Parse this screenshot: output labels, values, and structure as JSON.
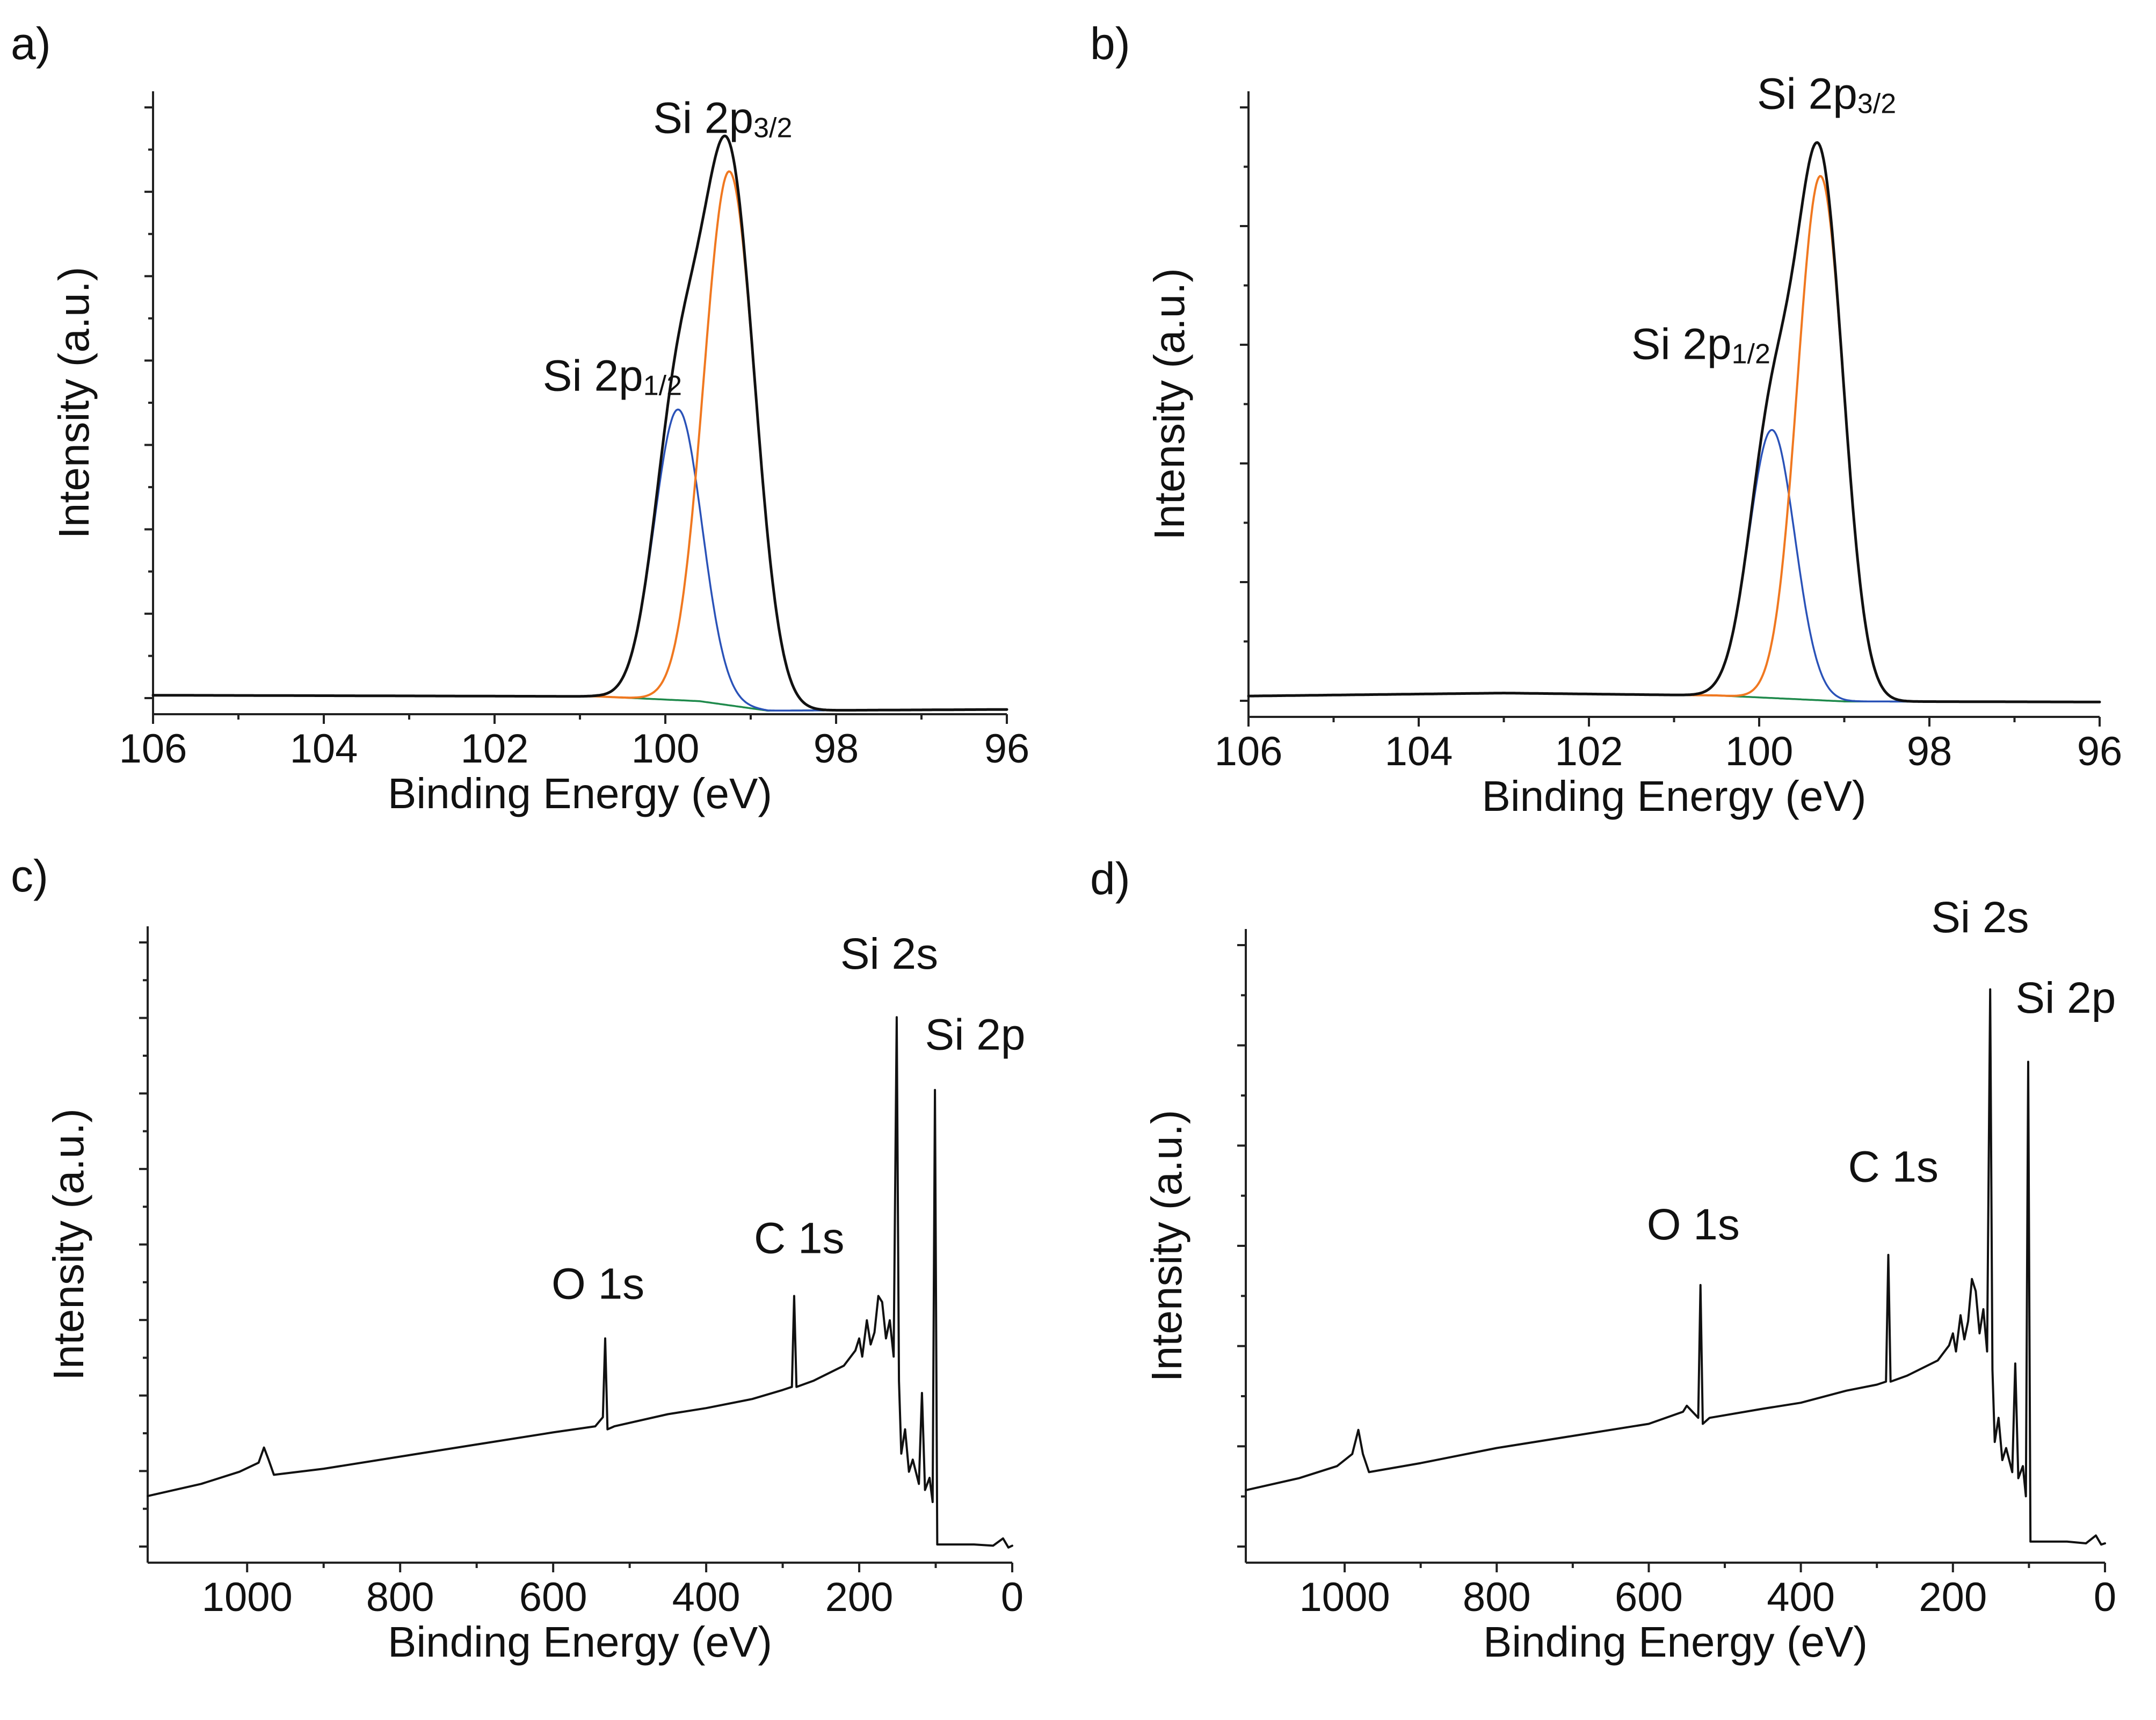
{
  "chart_data": [
    {
      "type": "line",
      "panel": "a)",
      "xlabel": "Binding Energy (eV)",
      "ylabel": "Intensity (a.u.)",
      "xlim": [
        106,
        96
      ],
      "ylim": [
        0,
        105
      ],
      "x_ticks": [
        106,
        104,
        102,
        100,
        98,
        96
      ],
      "y_tick_count": 8,
      "peaks": [
        {
          "label": "Si 2p",
          "sub": "1/2",
          "x": 99.8,
          "y": 50
        },
        {
          "label": "Si 2p",
          "sub": "3/2",
          "x": 99.2,
          "y": 93
        }
      ],
      "series": [
        {
          "name": "Envelope",
          "color": "#111111",
          "width": 5,
          "kind": "envelope"
        },
        {
          "name": "Si 2p1/2 component",
          "color": "#2a52b8",
          "width": 3.5,
          "kind": "gauss",
          "center": 99.85,
          "height": 49,
          "sigma": 0.28
        },
        {
          "name": "Si 2p3/2 component",
          "color": "#f07820",
          "width": 4,
          "kind": "gauss",
          "center": 99.25,
          "height": 90,
          "sigma": 0.3
        },
        {
          "name": "Background",
          "color": "#1f8a4c",
          "width": 3.5,
          "kind": "background",
          "points": [
            [
              106,
              3.2
            ],
            [
              100.8,
              3.0
            ],
            [
              99.6,
              2.2
            ],
            [
              98.8,
              0.6
            ],
            [
              96,
              0.8
            ]
          ]
        }
      ]
    },
    {
      "type": "line",
      "panel": "b)",
      "xlabel": "Binding Energy (eV)",
      "ylabel": "Intensity (a.u.)",
      "xlim": [
        106,
        96
      ],
      "ylim": [
        0,
        105
      ],
      "x_ticks": [
        106,
        104,
        102,
        100,
        98,
        96
      ],
      "y_tick_count": 6,
      "peaks": [
        {
          "label": "Si 2p",
          "sub": "1/2",
          "x": 99.8,
          "y": 56
        },
        {
          "label": "Si 2p",
          "sub": "3/2",
          "x": 99.3,
          "y": 98
        }
      ],
      "series": [
        {
          "name": "Envelope",
          "color": "#111111",
          "width": 5,
          "kind": "envelope"
        },
        {
          "name": "Si 2p1/2 component",
          "color": "#2a52b8",
          "width": 3.5,
          "kind": "gauss",
          "center": 99.85,
          "height": 45,
          "sigma": 0.27
        },
        {
          "name": "Si 2p3/2 component",
          "color": "#f07820",
          "width": 4,
          "kind": "gauss",
          "center": 99.28,
          "height": 88,
          "sigma": 0.27
        },
        {
          "name": "Background",
          "color": "#1f8a4c",
          "width": 3.5,
          "kind": "background",
          "points": [
            [
              106,
              3.5
            ],
            [
              103,
              4.0
            ],
            [
              100.5,
              3.6
            ],
            [
              99,
              2.6
            ],
            [
              96,
              2.5
            ]
          ]
        }
      ]
    },
    {
      "type": "line",
      "panel": "c)",
      "xlabel": "Binding Energy (eV)",
      "ylabel": "Intensity (a.u.)",
      "xlim": [
        1130,
        0
      ],
      "ylim": [
        0,
        105
      ],
      "x_ticks": [
        1000,
        800,
        600,
        400,
        200,
        0
      ],
      "y_tick_count": 9,
      "peaks": [
        {
          "label": "O 1s",
          "sub": "",
          "x": 532,
          "y": 40
        },
        {
          "label": "C 1s",
          "sub": "",
          "x": 285,
          "y": 48
        },
        {
          "label": "Si 2s",
          "sub": "",
          "x": 151,
          "y": 94
        },
        {
          "label": "Si 2p",
          "sub": "",
          "x": 100,
          "y": 82
        }
      ],
      "series": [
        {
          "name": "Survey spectrum",
          "color": "#111111",
          "width": 4,
          "kind": "survey",
          "points": [
            [
              1130,
              11
            ],
            [
              1060,
              13
            ],
            [
              1010,
              15
            ],
            [
              985,
              16.5
            ],
            [
              978,
              19
            ],
            [
              972,
              17
            ],
            [
              965,
              14.5
            ],
            [
              900,
              15.5
            ],
            [
              800,
              17.5
            ],
            [
              700,
              19.5
            ],
            [
              600,
              21.5
            ],
            [
              545,
              22.5
            ],
            [
              535,
              24
            ],
            [
              532,
              37
            ],
            [
              529,
              22
            ],
            [
              520,
              22.5
            ],
            [
              450,
              24.5
            ],
            [
              400,
              25.5
            ],
            [
              340,
              27
            ],
            [
              300,
              28.5
            ],
            [
              288,
              29
            ],
            [
              285,
              44
            ],
            [
              282,
              29
            ],
            [
              260,
              30
            ],
            [
              220,
              32.5
            ],
            [
              205,
              35
            ],
            [
              200,
              37
            ],
            [
              196,
              34
            ],
            [
              190,
              40
            ],
            [
              185,
              36
            ],
            [
              180,
              38
            ],
            [
              175,
              44
            ],
            [
              170,
              43
            ],
            [
              165,
              37
            ],
            [
              160,
              40
            ],
            [
              155,
              34
            ],
            [
              151,
              90
            ],
            [
              148,
              30
            ],
            [
              145,
              18
            ],
            [
              140,
              22
            ],
            [
              135,
              15
            ],
            [
              130,
              17
            ],
            [
              122,
              13
            ],
            [
              118,
              28
            ],
            [
              114,
              12
            ],
            [
              108,
              14
            ],
            [
              104,
              10
            ],
            [
              101,
              78
            ],
            [
              98,
              3
            ],
            [
              80,
              3
            ],
            [
              50,
              3
            ],
            [
              25,
              2.8
            ],
            [
              12,
              4
            ],
            [
              5,
              2.5
            ],
            [
              0,
              2.8
            ]
          ]
        }
      ]
    },
    {
      "type": "line",
      "panel": "d)",
      "xlabel": "Binding Energy (eV)",
      "ylabel": "Intensity (a.u.)",
      "xlim": [
        1130,
        0
      ],
      "ylim": [
        0,
        105
      ],
      "x_ticks": [
        1000,
        800,
        600,
        400,
        200,
        0
      ],
      "y_tick_count": 7,
      "peaks": [
        {
          "label": "O 1s",
          "sub": "",
          "x": 532,
          "y": 50
        },
        {
          "label": "C 1s",
          "sub": "",
          "x": 285,
          "y": 60
        },
        {
          "label": "Si 2s",
          "sub": "",
          "x": 151,
          "y": 100
        },
        {
          "label": "Si 2p",
          "sub": "",
          "x": 100,
          "y": 88
        }
      ],
      "series": [
        {
          "name": "Survey spectrum",
          "color": "#111111",
          "width": 4,
          "kind": "survey",
          "points": [
            [
              1130,
              12
            ],
            [
              1060,
              14
            ],
            [
              1010,
              16
            ],
            [
              990,
              18
            ],
            [
              982,
              22
            ],
            [
              976,
              18
            ],
            [
              968,
              15
            ],
            [
              900,
              16.5
            ],
            [
              800,
              19
            ],
            [
              700,
              21
            ],
            [
              600,
              23
            ],
            [
              555,
              25
            ],
            [
              550,
              26
            ],
            [
              535,
              24
            ],
            [
              532,
              46
            ],
            [
              529,
              23
            ],
            [
              520,
              24
            ],
            [
              450,
              25.5
            ],
            [
              400,
              26.5
            ],
            [
              340,
              28.5
            ],
            [
              300,
              29.5
            ],
            [
              288,
              30
            ],
            [
              285,
              51
            ],
            [
              282,
              30
            ],
            [
              260,
              31
            ],
            [
              220,
              33.5
            ],
            [
              205,
              36
            ],
            [
              200,
              38
            ],
            [
              196,
              35
            ],
            [
              190,
              41
            ],
            [
              185,
              37
            ],
            [
              180,
              40
            ],
            [
              175,
              47
            ],
            [
              170,
              45
            ],
            [
              165,
              38
            ],
            [
              160,
              42
            ],
            [
              155,
              35
            ],
            [
              151,
              95
            ],
            [
              148,
              32
            ],
            [
              145,
              20
            ],
            [
              140,
              24
            ],
            [
              135,
              17
            ],
            [
              130,
              19
            ],
            [
              122,
              15
            ],
            [
              118,
              33
            ],
            [
              114,
              14
            ],
            [
              108,
              16
            ],
            [
              104,
              11
            ],
            [
              101,
              83
            ],
            [
              98,
              3.5
            ],
            [
              80,
              3.5
            ],
            [
              50,
              3.5
            ],
            [
              25,
              3.2
            ],
            [
              12,
              4.5
            ],
            [
              5,
              3
            ],
            [
              0,
              3.2
            ]
          ]
        }
      ]
    }
  ]
}
